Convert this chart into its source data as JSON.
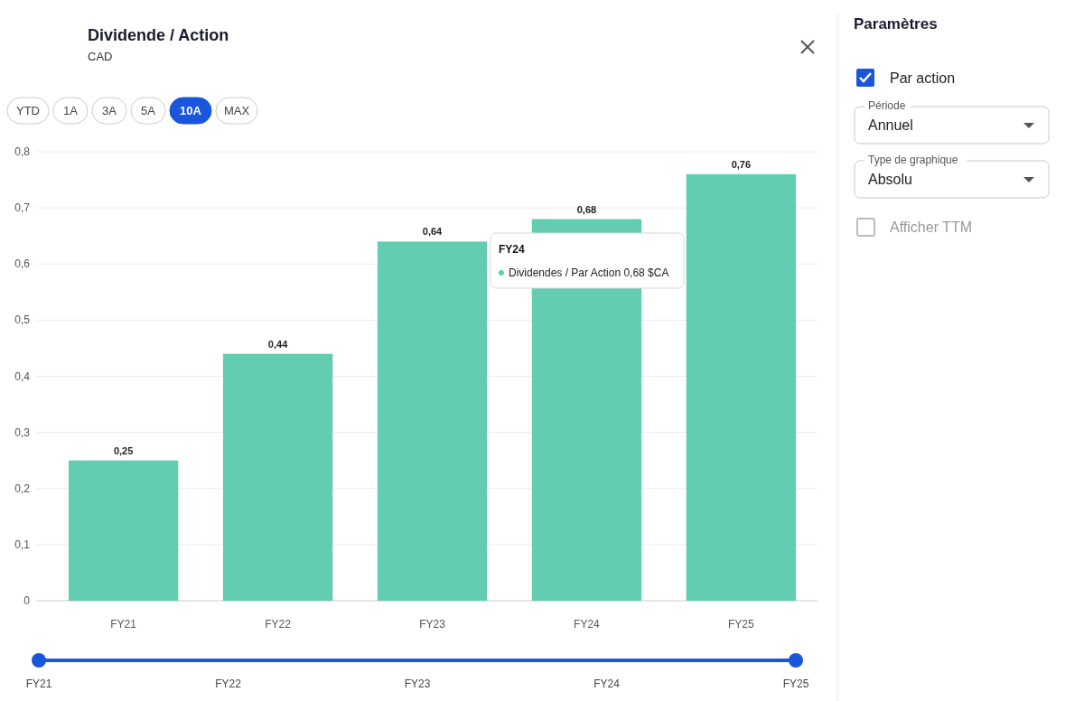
{
  "chart_data": [
    {
      "type": "bar",
      "title": "Dividende / Action",
      "subtitle": "CAD",
      "categories": [
        "FY21",
        "FY22",
        "FY23",
        "FY24",
        "FY25"
      ],
      "values": [
        0.25,
        0.44,
        0.64,
        0.68,
        0.76
      ],
      "color": "#62cdb1",
      "value_labels": [
        "0,25",
        "0,44",
        "0,64",
        "0,68",
        "0,76"
      ],
      "ylim": [
        0,
        0.8
      ],
      "yticks": [
        0,
        {
          "value": 0.1,
          "label": "0,1"
        },
        {
          "value": 0.2,
          "label": "0,2"
        },
        {
          "value": 0.3,
          "label": "0,3"
        },
        {
          "value": 0.4,
          "label": "0,4"
        },
        {
          "value": 0.5,
          "label": "0,5"
        },
        {
          "value": 0.6,
          "label": "0,6"
        },
        {
          "value": 0.7,
          "label": "0,7"
        },
        {
          "value": 0.8,
          "label": "0,8"
        }
      ],
      "grid": "y",
      "annotations": [
        "FY24",
        "Dividendes / Par Action 0,68 $CA"
      ]
    },
    {
      "type": "other",
      "annotations": [
        "YTD",
        "1A",
        "3A",
        "5A",
        "10A",
        "MAX"
      ]
    },
    {
      "type": "other",
      "title": "Paramètres",
      "annotations": [
        "Par action",
        "Période",
        "Annuel",
        "Type de graphique",
        "Absolu",
        "Afficher TTM"
      ]
    }
  ]
}
